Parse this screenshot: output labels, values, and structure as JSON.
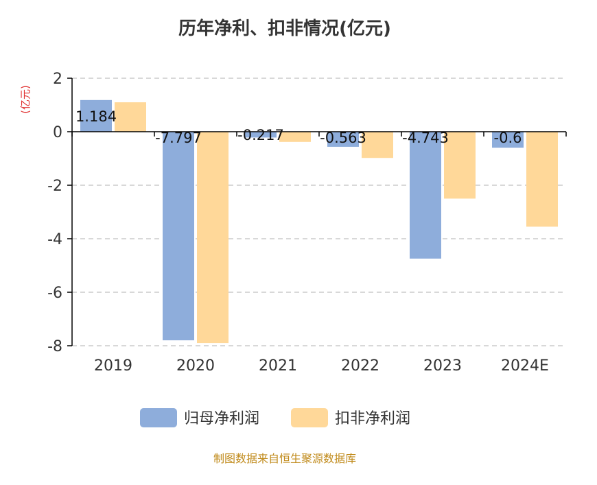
{
  "colors": {
    "series1": "#8EADDB",
    "series2": "#FFD899",
    "unit": "#E03030",
    "source": "#C08A1A",
    "axis": "#000000",
    "grid": "#CCCCCC"
  },
  "chart_data": {
    "type": "bar",
    "title": "历年净利、扣非情况(亿元)",
    "ylabel": "(亿元)",
    "categories": [
      "2019",
      "2020",
      "2021",
      "2022",
      "2023",
      "2024E"
    ],
    "ylim": [
      -8,
      2
    ],
    "yticks": [
      2,
      0,
      -2,
      -4,
      -6,
      -8
    ],
    "grid": true,
    "legend_position": "bottom",
    "series": [
      {
        "name": "归母净利润",
        "values": [
          1.184,
          -7.797,
          -0.217,
          -0.563,
          -4.743,
          -0.6
        ],
        "labels": [
          "1.184",
          "-7.797",
          "-0.217",
          "-0.563",
          "-4.743",
          "-0.6"
        ]
      },
      {
        "name": "扣非净利润",
        "values": [
          1.1,
          -7.9,
          -0.38,
          -0.98,
          -2.5,
          -3.55
        ]
      }
    ]
  },
  "source": "制图数据来自恒生聚源数据库"
}
